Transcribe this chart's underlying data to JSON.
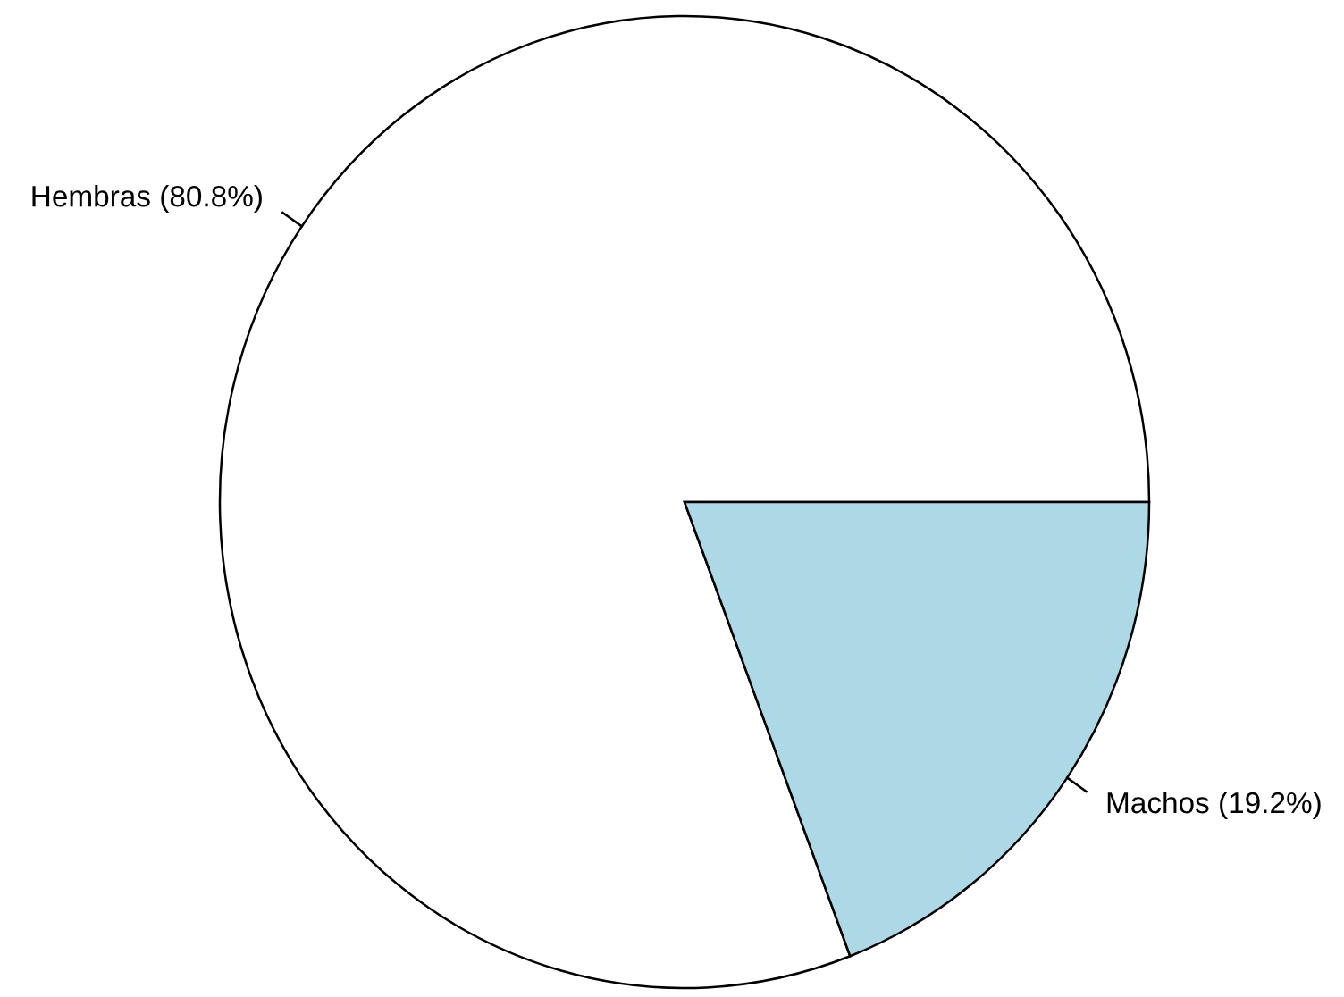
{
  "chart_data": {
    "type": "pie",
    "categories": [
      "Hembras (80.8%)",
      "Machos (19.2%)"
    ],
    "values": [
      80.8,
      19.2
    ],
    "colors": [
      "#ffffff",
      "#add8e6"
    ],
    "legend": false
  }
}
